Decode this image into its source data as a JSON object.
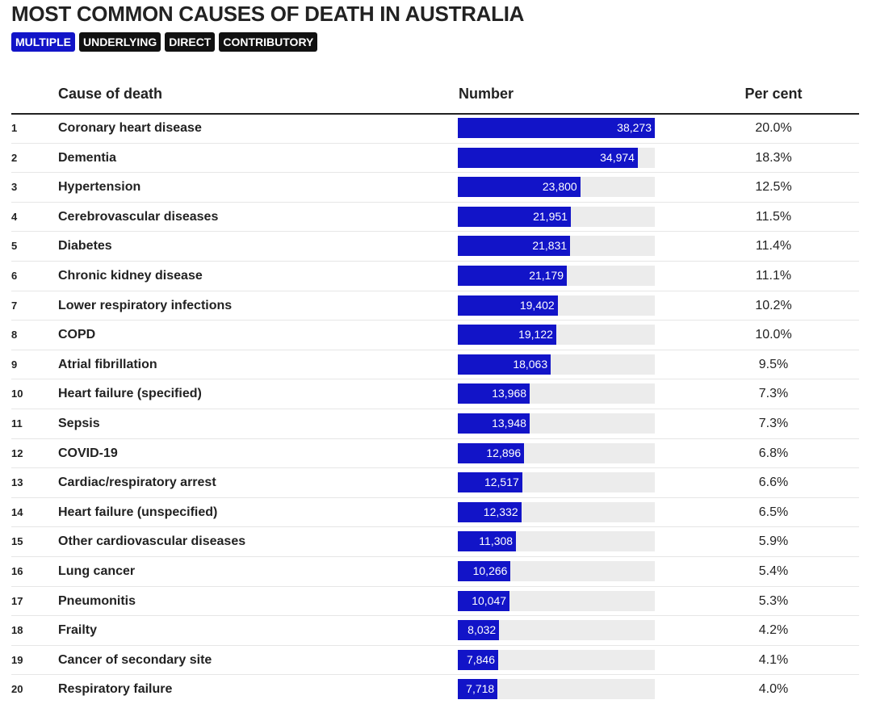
{
  "title": "MOST COMMON CAUSES OF DEATH IN AUSTRALIA",
  "filters": [
    {
      "label": "MULTIPLE",
      "active": true
    },
    {
      "label": "UNDERLYING",
      "active": false
    },
    {
      "label": "DIRECT",
      "active": false
    },
    {
      "label": "CONTRIBUTORY",
      "active": false
    }
  ],
  "columns": {
    "cause": "Cause of death",
    "number": "Number",
    "percent": "Per cent"
  },
  "colors": {
    "bar": "#1214c8",
    "track": "#ececec",
    "active_filter": "#1214c8",
    "inactive_filter": "#111111"
  },
  "chart_data": {
    "type": "bar",
    "orientation": "horizontal",
    "scale_max": 38273,
    "rows": [
      {
        "rank": "1",
        "cause": "Coronary heart disease",
        "value": 38273,
        "value_label": "38,273",
        "percent": "20.0%"
      },
      {
        "rank": "2",
        "cause": "Dementia",
        "value": 34974,
        "value_label": "34,974",
        "percent": "18.3%"
      },
      {
        "rank": "3",
        "cause": "Hypertension",
        "value": 23800,
        "value_label": "23,800",
        "percent": "12.5%"
      },
      {
        "rank": "4",
        "cause": "Cerebrovascular diseases",
        "value": 21951,
        "value_label": "21,951",
        "percent": "11.5%"
      },
      {
        "rank": "5",
        "cause": "Diabetes",
        "value": 21831,
        "value_label": "21,831",
        "percent": "11.4%"
      },
      {
        "rank": "6",
        "cause": "Chronic kidney disease",
        "value": 21179,
        "value_label": "21,179",
        "percent": "11.1%"
      },
      {
        "rank": "7",
        "cause": "Lower respiratory infections",
        "value": 19402,
        "value_label": "19,402",
        "percent": "10.2%"
      },
      {
        "rank": "8",
        "cause": "COPD",
        "value": 19122,
        "value_label": "19,122",
        "percent": "10.0%"
      },
      {
        "rank": "9",
        "cause": "Atrial fibrillation",
        "value": 18063,
        "value_label": "18,063",
        "percent": "9.5%"
      },
      {
        "rank": "10",
        "cause": "Heart failure (specified)",
        "value": 13968,
        "value_label": "13,968",
        "percent": "7.3%"
      },
      {
        "rank": "11",
        "cause": "Sepsis",
        "value": 13948,
        "value_label": "13,948",
        "percent": "7.3%"
      },
      {
        "rank": "12",
        "cause": "COVID-19",
        "value": 12896,
        "value_label": "12,896",
        "percent": "6.8%"
      },
      {
        "rank": "13",
        "cause": "Cardiac/respiratory arrest",
        "value": 12517,
        "value_label": "12,517",
        "percent": "6.6%"
      },
      {
        "rank": "14",
        "cause": "Heart failure (unspecified)",
        "value": 12332,
        "value_label": "12,332",
        "percent": "6.5%"
      },
      {
        "rank": "15",
        "cause": "Other cardiovascular diseases",
        "value": 11308,
        "value_label": "11,308",
        "percent": "5.9%"
      },
      {
        "rank": "16",
        "cause": "Lung cancer",
        "value": 10266,
        "value_label": "10,266",
        "percent": "5.4%"
      },
      {
        "rank": "17",
        "cause": "Pneumonitis",
        "value": 10047,
        "value_label": "10,047",
        "percent": "5.3%"
      },
      {
        "rank": "18",
        "cause": "Frailty",
        "value": 8032,
        "value_label": "8,032",
        "percent": "4.2%"
      },
      {
        "rank": "19",
        "cause": "Cancer of secondary site",
        "value": 7846,
        "value_label": "7,846",
        "percent": "4.1%"
      },
      {
        "rank": "20",
        "cause": "Respiratory failure",
        "value": 7718,
        "value_label": "7,718",
        "percent": "4.0%"
      }
    ]
  }
}
